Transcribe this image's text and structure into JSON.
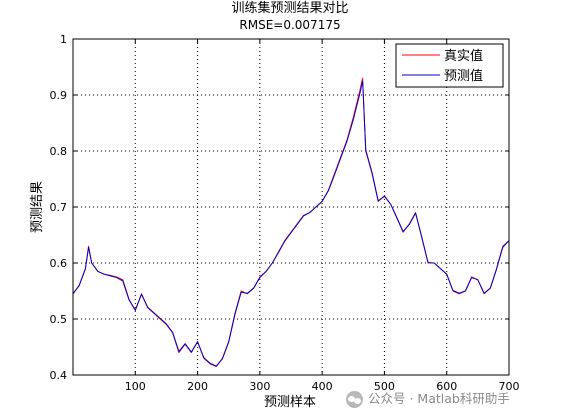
{
  "chart_data": {
    "type": "line",
    "title": "训练集预测结果对比",
    "subtitle": "RMSE=0.007175",
    "xlabel": "预测样本",
    "ylabel": "预测结果",
    "xlim": [
      0,
      700
    ],
    "ylim": [
      0.4,
      1.0
    ],
    "x_ticks": [
      100,
      200,
      300,
      400,
      500,
      600,
      700
    ],
    "y_ticks": [
      0.4,
      0.5,
      0.6,
      0.7,
      0.8,
      0.9,
      1.0
    ],
    "y_tick_labels": [
      "0.4",
      "0.5",
      "0.6",
      "0.7",
      "0.8",
      "0.9",
      "1"
    ],
    "grid": true,
    "legend_position": "top-right",
    "x": [
      0,
      10,
      20,
      25,
      30,
      40,
      50,
      60,
      70,
      80,
      90,
      100,
      110,
      120,
      130,
      140,
      150,
      160,
      170,
      180,
      190,
      200,
      210,
      220,
      230,
      240,
      250,
      260,
      270,
      280,
      290,
      300,
      310,
      320,
      330,
      340,
      350,
      360,
      370,
      380,
      390,
      400,
      410,
      420,
      430,
      440,
      450,
      460,
      465,
      470,
      480,
      490,
      500,
      510,
      520,
      530,
      540,
      550,
      560,
      570,
      580,
      590,
      600,
      610,
      620,
      630,
      640,
      650,
      660,
      670,
      680,
      690,
      700
    ],
    "series": [
      {
        "name": "真实值",
        "color": "#ff0000",
        "values": [
          0.545,
          0.56,
          0.59,
          0.63,
          0.6,
          0.585,
          0.58,
          0.578,
          0.575,
          0.57,
          0.535,
          0.515,
          0.545,
          0.52,
          0.51,
          0.5,
          0.49,
          0.475,
          0.44,
          0.455,
          0.44,
          0.46,
          0.43,
          0.42,
          0.415,
          0.43,
          0.46,
          0.51,
          0.55,
          0.545,
          0.555,
          0.575,
          0.585,
          0.6,
          0.62,
          0.64,
          0.655,
          0.67,
          0.685,
          0.69,
          0.7,
          0.71,
          0.73,
          0.76,
          0.79,
          0.82,
          0.86,
          0.905,
          0.93,
          0.8,
          0.76,
          0.71,
          0.72,
          0.705,
          0.68,
          0.655,
          0.67,
          0.69,
          0.645,
          0.6,
          0.6,
          0.59,
          0.58,
          0.55,
          0.545,
          0.55,
          0.575,
          0.57,
          0.545,
          0.555,
          0.59,
          0.63,
          0.64
        ]
      },
      {
        "name": "预测值",
        "color": "#0000cc",
        "values": [
          0.545,
          0.56,
          0.59,
          0.628,
          0.6,
          0.585,
          0.58,
          0.577,
          0.574,
          0.568,
          0.534,
          0.516,
          0.544,
          0.521,
          0.511,
          0.501,
          0.491,
          0.476,
          0.442,
          0.456,
          0.441,
          0.459,
          0.431,
          0.421,
          0.416,
          0.429,
          0.459,
          0.508,
          0.548,
          0.546,
          0.555,
          0.574,
          0.585,
          0.6,
          0.619,
          0.639,
          0.654,
          0.669,
          0.684,
          0.69,
          0.7,
          0.71,
          0.729,
          0.758,
          0.788,
          0.818,
          0.856,
          0.9,
          0.925,
          0.802,
          0.762,
          0.711,
          0.719,
          0.705,
          0.681,
          0.656,
          0.669,
          0.689,
          0.646,
          0.601,
          0.6,
          0.59,
          0.58,
          0.551,
          0.546,
          0.55,
          0.574,
          0.57,
          0.546,
          0.555,
          0.589,
          0.628,
          0.64
        ]
      }
    ]
  },
  "watermark": "公众号 · Matlab科研助手"
}
